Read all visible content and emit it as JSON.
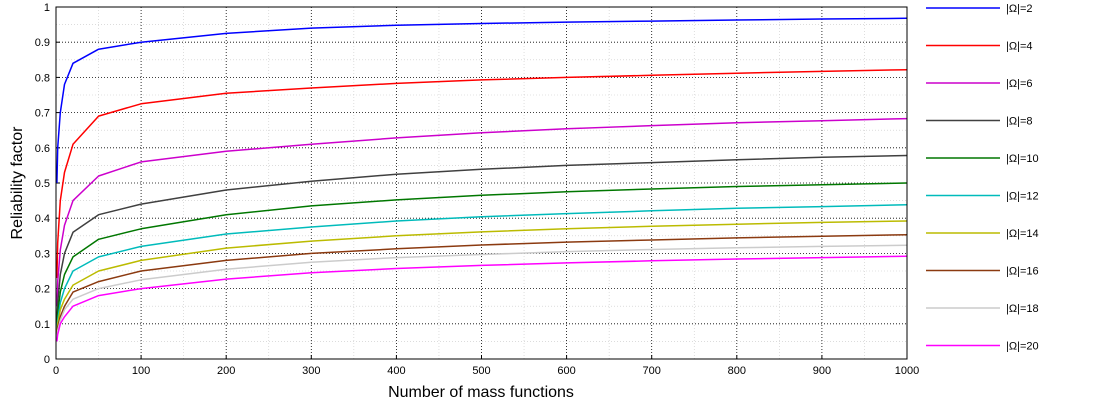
{
  "chart_data": {
    "type": "line",
    "title": "",
    "xlabel": "Number of mass functions",
    "ylabel": "Reliability factor",
    "xlim": [
      0,
      1000
    ],
    "ylim": [
      0,
      1
    ],
    "xticks": [
      0,
      100,
      200,
      300,
      400,
      500,
      600,
      700,
      800,
      900,
      1000
    ],
    "yticks": [
      0,
      0.1,
      0.2,
      0.3,
      0.4,
      0.5,
      0.6,
      0.7,
      0.8,
      0.9,
      1
    ],
    "grid": true,
    "legend_position": "outside-right",
    "x": [
      1,
      2,
      5,
      10,
      20,
      50,
      100,
      200,
      300,
      400,
      500,
      600,
      700,
      800,
      900,
      1000
    ],
    "series": [
      {
        "name": "|Ω|=2",
        "color": "#0000ff",
        "values": [
          0.5,
          0.6,
          0.7,
          0.78,
          0.84,
          0.88,
          0.9,
          0.925,
          0.94,
          0.948,
          0.953,
          0.957,
          0.96,
          0.963,
          0.966,
          0.968
        ]
      },
      {
        "name": "|Ω|=4",
        "color": "#ff0000",
        "values": [
          0.23,
          0.33,
          0.45,
          0.53,
          0.61,
          0.69,
          0.725,
          0.755,
          0.77,
          0.783,
          0.793,
          0.8,
          0.806,
          0.812,
          0.817,
          0.822
        ]
      },
      {
        "name": "|Ω|=6",
        "color": "#cc00cc",
        "values": [
          0.15,
          0.22,
          0.31,
          0.38,
          0.45,
          0.52,
          0.56,
          0.59,
          0.61,
          0.628,
          0.643,
          0.654,
          0.663,
          0.671,
          0.677,
          0.683
        ]
      },
      {
        "name": "|Ω|=8",
        "color": "#404040",
        "values": [
          0.11,
          0.16,
          0.24,
          0.3,
          0.36,
          0.41,
          0.44,
          0.48,
          0.505,
          0.525,
          0.539,
          0.55,
          0.558,
          0.566,
          0.573,
          0.578
        ]
      },
      {
        "name": "|Ω|=10",
        "color": "#007700",
        "values": [
          0.09,
          0.13,
          0.19,
          0.24,
          0.29,
          0.34,
          0.37,
          0.41,
          0.435,
          0.452,
          0.465,
          0.475,
          0.483,
          0.49,
          0.495,
          0.5
        ]
      },
      {
        "name": "|Ω|=12",
        "color": "#00bbbb",
        "values": [
          0.08,
          0.11,
          0.16,
          0.2,
          0.25,
          0.29,
          0.32,
          0.355,
          0.375,
          0.392,
          0.404,
          0.413,
          0.421,
          0.428,
          0.433,
          0.438
        ]
      },
      {
        "name": "|Ω|=14",
        "color": "#bbbb00",
        "values": [
          0.07,
          0.1,
          0.14,
          0.17,
          0.21,
          0.25,
          0.28,
          0.315,
          0.335,
          0.35,
          0.361,
          0.37,
          0.377,
          0.383,
          0.388,
          0.392
        ]
      },
      {
        "name": "|Ω|=16",
        "color": "#8b3a10",
        "values": [
          0.06,
          0.09,
          0.12,
          0.15,
          0.19,
          0.22,
          0.25,
          0.28,
          0.3,
          0.313,
          0.324,
          0.332,
          0.338,
          0.344,
          0.349,
          0.353
        ]
      },
      {
        "name": "|Ω|=18",
        "color": "#cccccc",
        "values": [
          0.055,
          0.08,
          0.11,
          0.14,
          0.17,
          0.2,
          0.225,
          0.255,
          0.275,
          0.288,
          0.297,
          0.305,
          0.311,
          0.316,
          0.32,
          0.323
        ]
      },
      {
        "name": "|Ω|=20",
        "color": "#ff00ff",
        "values": [
          0.05,
          0.07,
          0.1,
          0.12,
          0.15,
          0.18,
          0.2,
          0.227,
          0.245,
          0.257,
          0.266,
          0.273,
          0.279,
          0.284,
          0.288,
          0.292
        ]
      }
    ]
  }
}
